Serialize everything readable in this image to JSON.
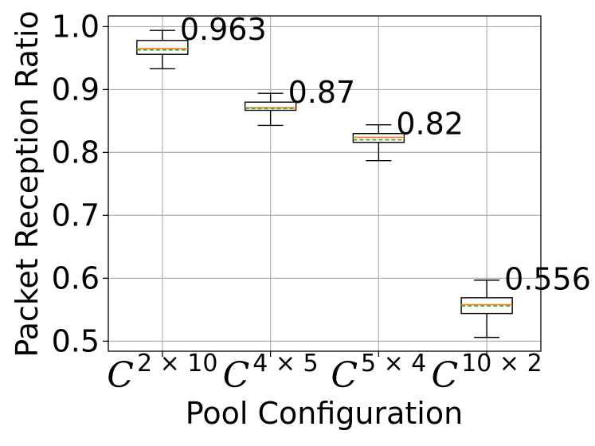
{
  "chart_data": {
    "type": "box",
    "xlabel": "Pool Configuration",
    "ylabel": "Packet Reception Ratio",
    "ylim": [
      0.484,
      1.017
    ],
    "yticks": [
      0.5,
      0.6,
      0.7,
      0.8,
      0.9,
      1.0
    ],
    "ytick_labels": [
      "0.5",
      "0.6",
      "0.7",
      "0.8",
      "0.9",
      "1.0"
    ],
    "grid": true,
    "colors": {
      "box_edge": "#000000",
      "median": "#ff7f0e",
      "mean": "#2ca02c",
      "grid": "#b0b0b0"
    },
    "categories": [
      {
        "base": "C",
        "exponent": "2 × 10"
      },
      {
        "base": "C",
        "exponent": "4 × 5"
      },
      {
        "base": "C",
        "exponent": "5 × 4"
      },
      {
        "base": "C",
        "exponent": "10 × 2"
      }
    ],
    "boxes": [
      {
        "whislo": 0.933,
        "q1": 0.956,
        "med": 0.965,
        "mean": 0.963,
        "q3": 0.978,
        "whishi": 0.994,
        "label": "0.963"
      },
      {
        "whislo": 0.843,
        "q1": 0.867,
        "med": 0.871,
        "mean": 0.87,
        "q3": 0.88,
        "whishi": 0.894,
        "label": "0.87"
      },
      {
        "whislo": 0.787,
        "q1": 0.816,
        "med": 0.824,
        "mean": 0.82,
        "q3": 0.83,
        "whishi": 0.844,
        "label": "0.82"
      },
      {
        "whislo": 0.506,
        "q1": 0.544,
        "med": 0.558,
        "mean": 0.556,
        "q3": 0.569,
        "whishi": 0.597,
        "label": "0.556"
      }
    ]
  }
}
